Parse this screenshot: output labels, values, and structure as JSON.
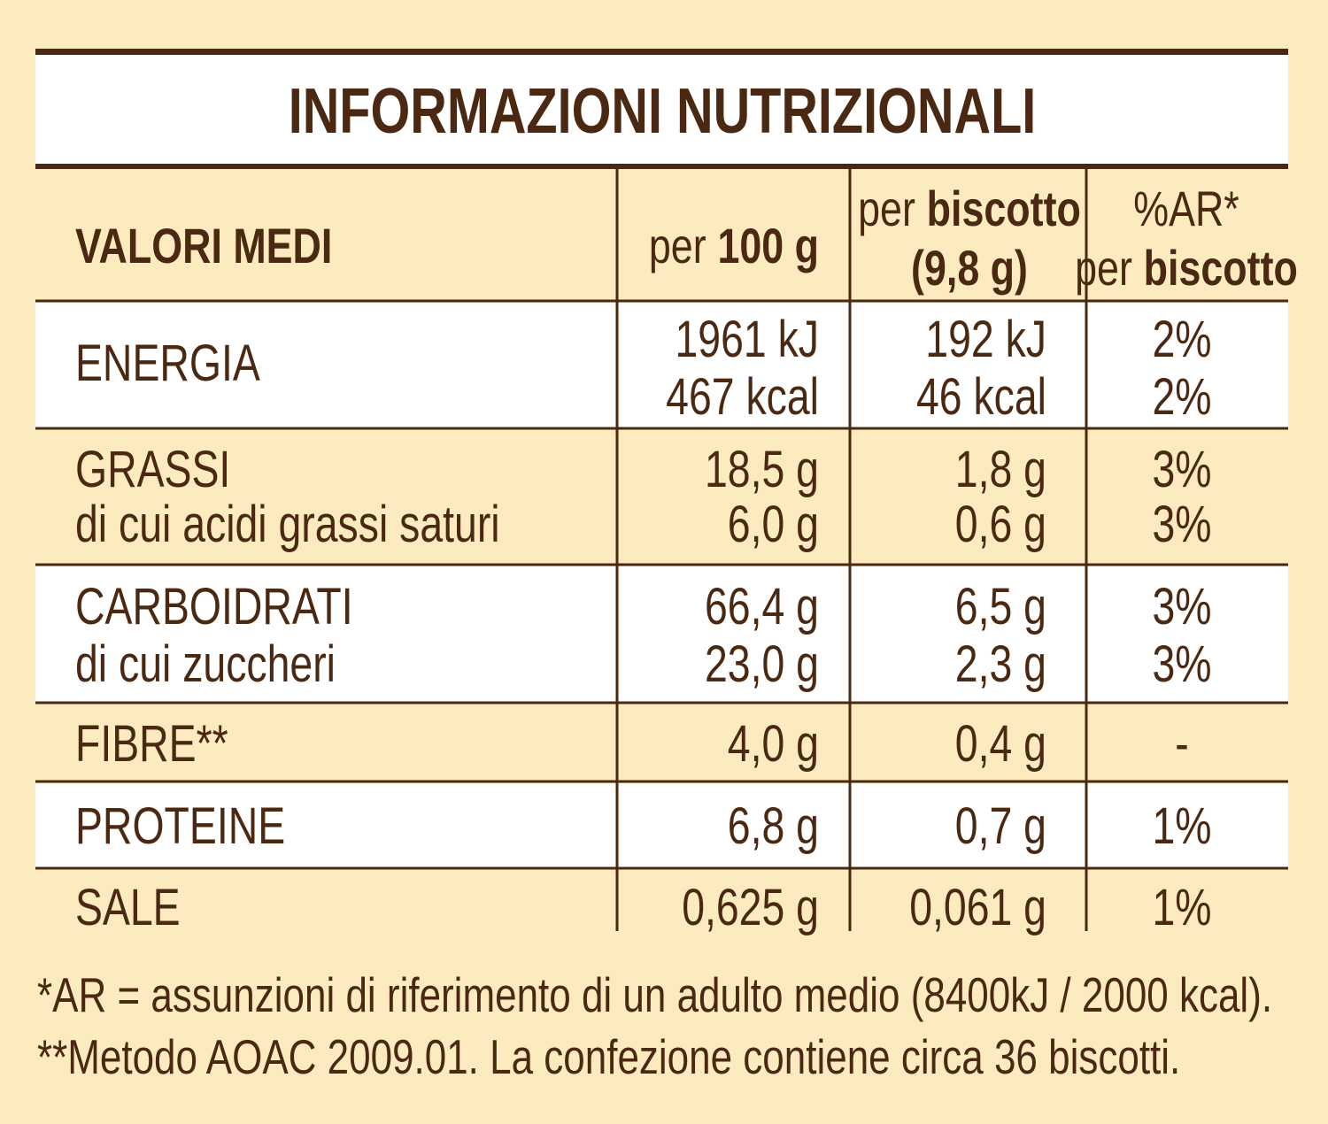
{
  "title": "INFORMAZIONI NUTRIZIONALI",
  "header": {
    "label": "VALORI MEDI",
    "columns": [
      [
        [
          {
            "text": "per",
            "bold": false
          },
          {
            "text": "100 g",
            "bold": true
          }
        ]
      ],
      [
        [
          {
            "text": "per",
            "bold": false
          },
          {
            "text": "biscotto",
            "bold": true
          }
        ],
        [
          {
            "text": "(9,8 g)",
            "bold": true
          }
        ]
      ],
      [
        [
          {
            "text": "%AR*",
            "bold": false
          }
        ],
        [
          {
            "text": "per",
            "bold": false
          },
          {
            "text": "biscotto",
            "bold": true
          }
        ]
      ]
    ]
  },
  "rows": [
    {
      "lines": [
        [
          "ENERGIA",
          "1961 kJ",
          "192 kJ",
          "2%"
        ],
        [
          null,
          "467 kcal",
          "46 kcal",
          "2%"
        ]
      ]
    },
    {
      "lines": [
        [
          "GRASSI",
          "18,5 g",
          "1,8 g",
          "3%"
        ],
        [
          "di cui acidi grassi saturi",
          "6,0 g",
          "0,6 g",
          "3%"
        ]
      ]
    },
    {
      "lines": [
        [
          "CARBOIDRATI",
          "66,4 g",
          "6,5 g",
          "3%"
        ],
        [
          "di cui zuccheri",
          "23,0 g",
          "2,3 g",
          "3%"
        ]
      ]
    },
    {
      "lines": [
        [
          "FIBRE**",
          "4,0 g",
          "0,4 g",
          "-"
        ]
      ]
    },
    {
      "lines": [
        [
          "PROTEINE",
          "6,8 g",
          "0,7 g",
          "1%"
        ]
      ]
    },
    {
      "lines": [
        [
          "SALE",
          "0,625 g",
          "0,061 g",
          "1%"
        ]
      ]
    }
  ],
  "footnotes": [
    "*AR = assunzioni di riferimento di un adulto medio (8400kJ / 2000 kcal).",
    "**Metodo AOAC 2009.01. La confezione contiene circa 36 biscotti."
  ]
}
